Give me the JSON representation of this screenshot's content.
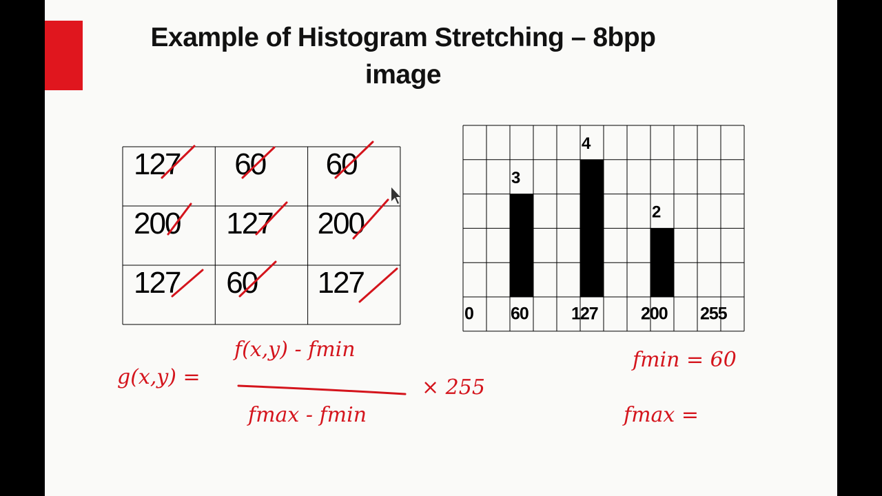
{
  "header": {
    "title": "Example of Histogram Stretching – 8bpp image"
  },
  "table": {
    "rows": [
      [
        127,
        60,
        60
      ],
      [
        200,
        127,
        200
      ],
      [
        127,
        60,
        127
      ]
    ]
  },
  "histogram": {
    "bars": [
      {
        "count": 3
      },
      {
        "count": 4
      },
      {
        "count": 2
      }
    ],
    "axis_labels": [
      0,
      60,
      127,
      200,
      255
    ]
  },
  "annotations": {
    "lhs": "g(x,y) =",
    "numerator": "f(x,y) - fmin",
    "denominator": "fmax - fmin",
    "factor": "× 255",
    "fmin": "fmin = 60",
    "fmax": "fmax ="
  }
}
